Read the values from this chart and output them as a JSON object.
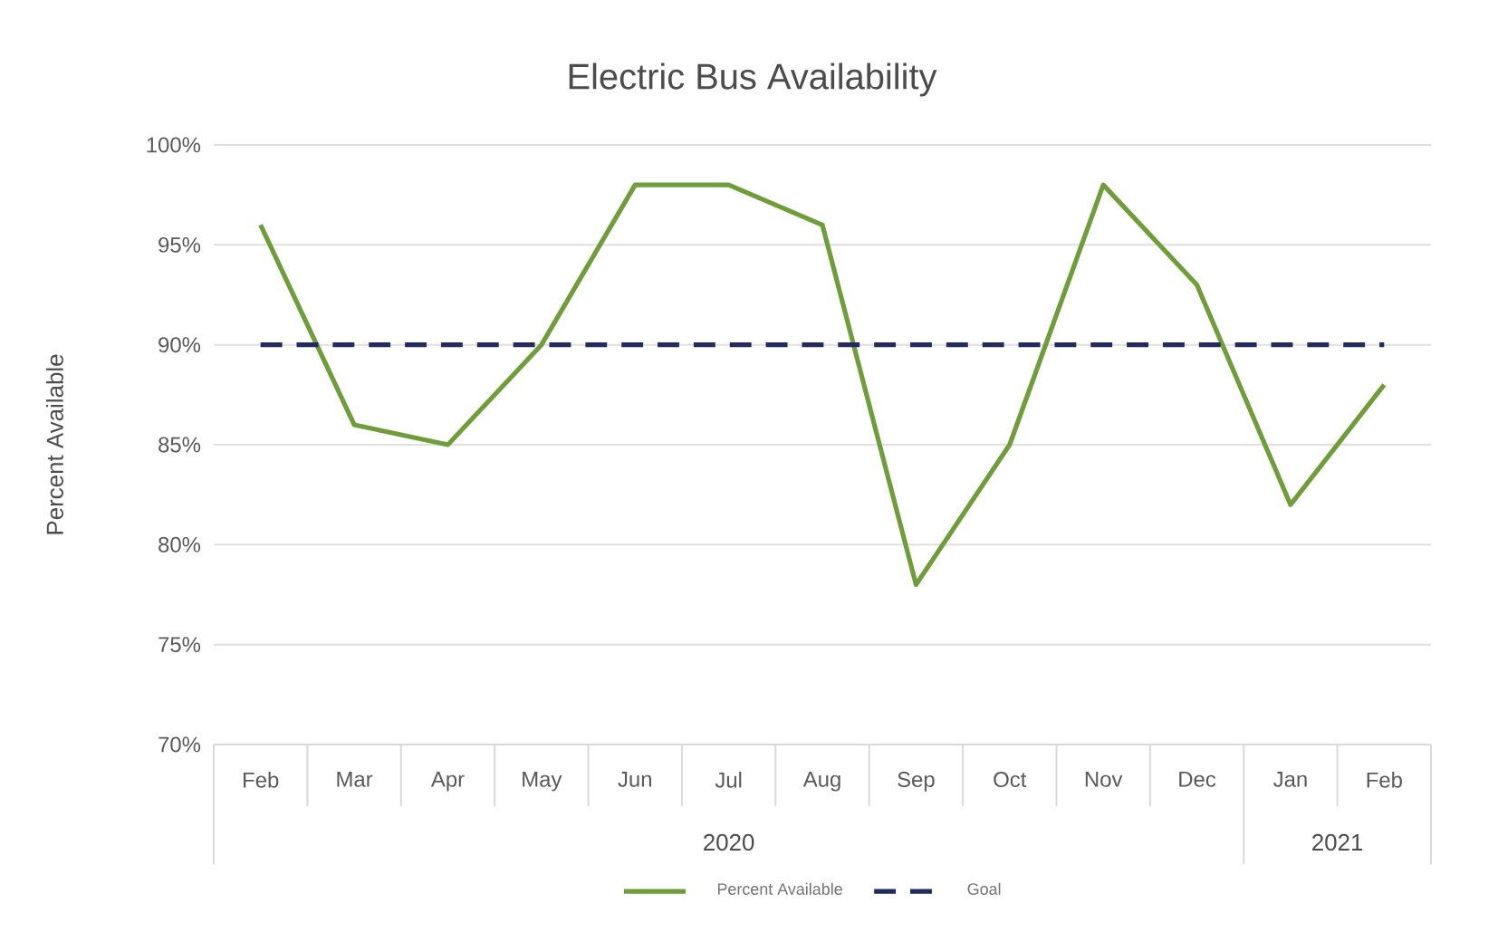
{
  "chart_data": {
    "type": "line",
    "title": "Electric Bus Availability",
    "ylabel": "Percent Available",
    "categories": [
      "Feb",
      "Mar",
      "Apr",
      "May",
      "Jun",
      "Jul",
      "Aug",
      "Sep",
      "Oct",
      "Nov",
      "Dec",
      "Jan",
      "Feb"
    ],
    "series": [
      {
        "name": "Percent Available",
        "color": "#6e9d3a",
        "values": [
          96,
          86,
          85,
          90,
          98,
          98,
          96,
          78,
          85,
          98,
          93,
          82,
          88
        ]
      }
    ],
    "ref_lines": [
      {
        "axis": "y",
        "value": 90,
        "label": "Goal",
        "color": "#252a5e",
        "line_style": "dashed"
      }
    ],
    "annotations": [
      "2020",
      "2021"
    ],
    "ylim": [
      70,
      100
    ],
    "yticks": [
      {
        "value": 70,
        "label": "70%"
      },
      {
        "value": 75,
        "label": "75%"
      },
      {
        "value": 80,
        "label": "80%"
      },
      {
        "value": 85,
        "label": "85%"
      },
      {
        "value": 90,
        "label": "90%"
      },
      {
        "value": 95,
        "label": "95%"
      },
      {
        "value": 100,
        "label": "100%"
      }
    ],
    "grid": "y",
    "legend": "bottom"
  }
}
